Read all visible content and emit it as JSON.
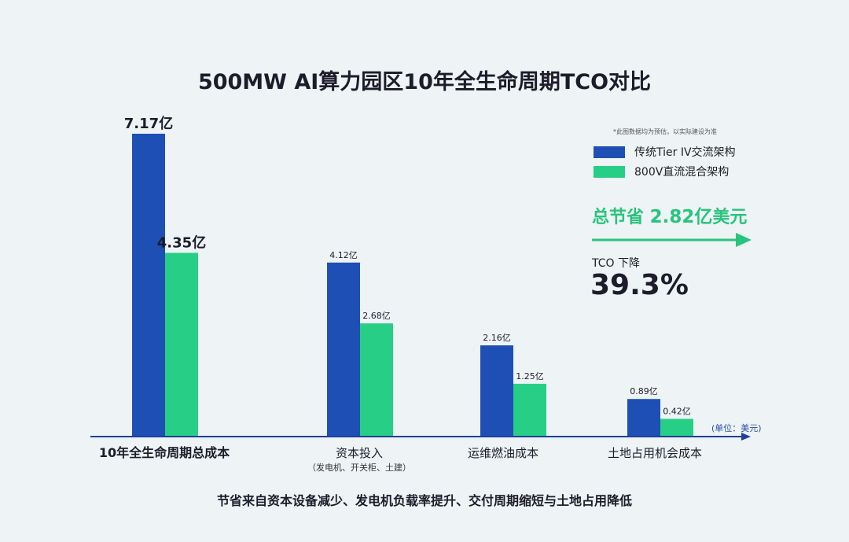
{
  "chart_data": {
    "type": "bar",
    "title": "500MW AI算力园区10年全生命周期TCO对比",
    "note": "*此图数据均为预估，以实际建设为准",
    "unit_label": "(单位：美元)",
    "categories": [
      "10年全生命周期总成本",
      "资本投入",
      "运维燃油成本",
      "土地占用机会成本"
    ],
    "category_sublabels": [
      "",
      "（发电机、开关柜、土建）",
      "",
      ""
    ],
    "series": [
      {
        "name": "传统Tier IV交流架构",
        "color": "#1d4fb5",
        "values": [
          7.17,
          4.12,
          2.16,
          0.89
        ],
        "labels": [
          "7.17亿",
          "4.12亿",
          "2.16亿",
          "0.89亿"
        ]
      },
      {
        "name": "800V直流混合架构",
        "color": "#27cf86",
        "values": [
          4.35,
          2.68,
          1.25,
          0.42
        ],
        "labels": [
          "4.35亿",
          "2.68亿",
          "1.25亿",
          "0.42亿"
        ]
      }
    ],
    "ylim": [
      0,
      7.17
    ]
  },
  "summary": {
    "savings_prefix": "总节省 ",
    "savings_value": "2.82亿",
    "savings_suffix": "美元",
    "tco_label": "TCO 下降",
    "tco_value": "39.3%"
  },
  "footer": "节省来自资本设备减少、发电机负载率提升、交付周期缩短与土地占用降低",
  "colors": {
    "accent": "#27c47c",
    "axis": "#1d3f9e"
  }
}
